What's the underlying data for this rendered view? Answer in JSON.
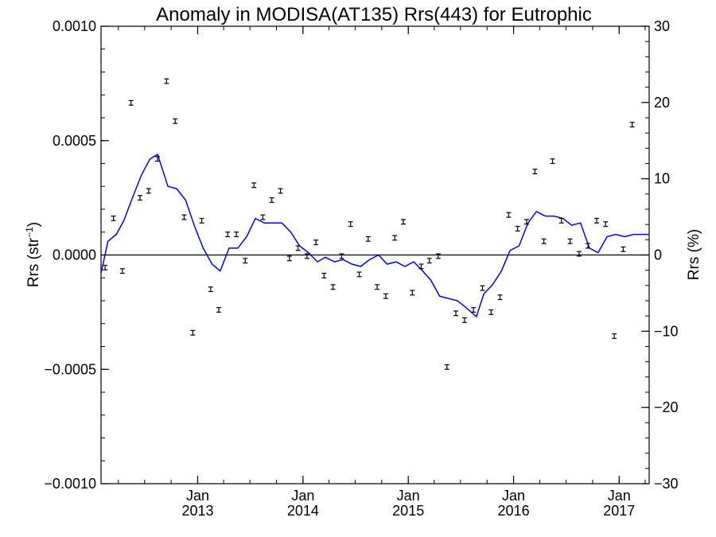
{
  "chart_data": {
    "type": "scatter",
    "title": "Anomaly in MODISA(AT135) Rrs(443) for Eutrophic",
    "ylabel_left": {
      "base": "Rrs (str",
      "sup": "−1",
      "close": ")"
    },
    "ylabel_right": "Rrs (%)",
    "x_range": [
      "2012-02-01",
      "2017-04-15"
    ],
    "ylim_left": [
      -0.001,
      0.001
    ],
    "ylim_right": [
      -30,
      30
    ],
    "y_ticks_left": [
      {
        "value": 0.001,
        "label": "0.0010"
      },
      {
        "value": 0.0005,
        "label": "0.0005"
      },
      {
        "value": 0.0,
        "label": "0.0000"
      },
      {
        "value": -0.0005,
        "label": "−0.0005"
      },
      {
        "value": -0.001,
        "label": "−0.0010"
      }
    ],
    "y_ticks_right": [
      {
        "value": 30,
        "label": "30"
      },
      {
        "value": 20,
        "label": "20"
      },
      {
        "value": 10,
        "label": "10"
      },
      {
        "value": 0,
        "label": "0"
      },
      {
        "value": -10,
        "label": "−10"
      },
      {
        "value": -20,
        "label": "−20"
      },
      {
        "value": -30,
        "label": "−30"
      }
    ],
    "x_ticks": [
      {
        "date": "2013-01-01",
        "month": "Jan",
        "year": "2013"
      },
      {
        "date": "2014-01-01",
        "month": "Jan",
        "year": "2014"
      },
      {
        "date": "2015-01-01",
        "month": "Jan",
        "year": "2015"
      },
      {
        "date": "2016-01-01",
        "month": "Jan",
        "year": "2016"
      },
      {
        "date": "2017-01-01",
        "month": "Jan",
        "year": "2017"
      }
    ],
    "zero_line": 0,
    "series": [
      {
        "kind": "points_with_errorbars",
        "color": "#000000",
        "error": 1e-05,
        "points": [
          {
            "x": "2012-02-15",
            "y": -5.5e-05
          },
          {
            "x": "2012-03-15",
            "y": 0.00016
          },
          {
            "x": "2012-04-15",
            "y": -7e-05
          },
          {
            "x": "2012-05-15",
            "y": 0.000665
          },
          {
            "x": "2012-06-15",
            "y": 0.00025
          },
          {
            "x": "2012-07-15",
            "y": 0.00028
          },
          {
            "x": "2012-08-15",
            "y": 0.00042
          },
          {
            "x": "2012-09-15",
            "y": 0.00076
          },
          {
            "x": "2012-10-15",
            "y": 0.000585
          },
          {
            "x": "2012-11-15",
            "y": 0.000165
          },
          {
            "x": "2012-12-15",
            "y": -0.00034
          },
          {
            "x": "2013-01-15",
            "y": 0.00015
          },
          {
            "x": "2013-02-15",
            "y": -0.00015
          },
          {
            "x": "2013-03-15",
            "y": -0.00024
          },
          {
            "x": "2013-04-15",
            "y": 9e-05
          },
          {
            "x": "2013-05-15",
            "y": 9e-05
          },
          {
            "x": "2013-06-15",
            "y": -2.5e-05
          },
          {
            "x": "2013-07-15",
            "y": 0.000305
          },
          {
            "x": "2013-08-15",
            "y": 0.000165
          },
          {
            "x": "2013-09-15",
            "y": 0.00024
          },
          {
            "x": "2013-10-15",
            "y": 0.00028
          },
          {
            "x": "2013-11-15",
            "y": -1.5e-05
          },
          {
            "x": "2013-12-15",
            "y": 3e-05
          },
          {
            "x": "2014-01-15",
            "y": -5e-06
          },
          {
            "x": "2014-02-15",
            "y": 5.5e-05
          },
          {
            "x": "2014-03-15",
            "y": -9e-05
          },
          {
            "x": "2014-04-15",
            "y": -0.00014
          },
          {
            "x": "2014-05-15",
            "y": -5e-06
          },
          {
            "x": "2014-06-15",
            "y": 0.000135
          },
          {
            "x": "2014-07-15",
            "y": -8.5e-05
          },
          {
            "x": "2014-08-15",
            "y": 7e-05
          },
          {
            "x": "2014-09-15",
            "y": -0.00014
          },
          {
            "x": "2014-10-15",
            "y": -0.00018
          },
          {
            "x": "2014-11-15",
            "y": 7.5e-05
          },
          {
            "x": "2014-12-15",
            "y": 0.000145
          },
          {
            "x": "2015-01-15",
            "y": -0.000165
          },
          {
            "x": "2015-02-15",
            "y": -5e-05
          },
          {
            "x": "2015-03-15",
            "y": -2.5e-05
          },
          {
            "x": "2015-04-15",
            "y": -5e-06
          },
          {
            "x": "2015-05-15",
            "y": -0.00049
          },
          {
            "x": "2015-06-15",
            "y": -0.000255
          },
          {
            "x": "2015-07-15",
            "y": -0.000285
          },
          {
            "x": "2015-08-15",
            "y": -0.00024
          },
          {
            "x": "2015-09-15",
            "y": -0.000145
          },
          {
            "x": "2015-10-15",
            "y": -0.00025
          },
          {
            "x": "2015-11-15",
            "y": -0.000185
          },
          {
            "x": "2015-12-15",
            "y": 0.000175
          },
          {
            "x": "2016-01-15",
            "y": 0.000115
          },
          {
            "x": "2016-02-15",
            "y": 0.000145
          },
          {
            "x": "2016-03-15",
            "y": 0.000365
          },
          {
            "x": "2016-04-15",
            "y": 6e-05
          },
          {
            "x": "2016-05-15",
            "y": 0.00041
          },
          {
            "x": "2016-06-15",
            "y": 0.00015
          },
          {
            "x": "2016-07-15",
            "y": 6e-05
          },
          {
            "x": "2016-08-15",
            "y": 5e-06
          },
          {
            "x": "2016-09-15",
            "y": 4e-05
          },
          {
            "x": "2016-10-15",
            "y": 0.00015
          },
          {
            "x": "2016-11-15",
            "y": 0.000135
          },
          {
            "x": "2016-12-15",
            "y": -0.000355
          },
          {
            "x": "2017-01-15",
            "y": 2.5e-05
          },
          {
            "x": "2017-02-15",
            "y": 0.00057
          }
        ]
      },
      {
        "kind": "line",
        "color": "#0000ff",
        "points": [
          {
            "x": "2012-02-01",
            "y": -8e-05
          },
          {
            "x": "2012-02-25",
            "y": 6e-05
          },
          {
            "x": "2012-03-25",
            "y": 9e-05
          },
          {
            "x": "2012-04-20",
            "y": 0.00015
          },
          {
            "x": "2012-05-20",
            "y": 0.00025
          },
          {
            "x": "2012-06-20",
            "y": 0.00035
          },
          {
            "x": "2012-07-20",
            "y": 0.00042
          },
          {
            "x": "2012-08-15",
            "y": 0.00044
          },
          {
            "x": "2012-09-20",
            "y": 0.0003
          },
          {
            "x": "2012-10-20",
            "y": 0.00029
          },
          {
            "x": "2012-11-20",
            "y": 0.00024
          },
          {
            "x": "2012-12-20",
            "y": 0.00013
          },
          {
            "x": "2013-01-20",
            "y": 3e-05
          },
          {
            "x": "2013-02-20",
            "y": -4e-05
          },
          {
            "x": "2013-03-20",
            "y": -7e-05
          },
          {
            "x": "2013-04-20",
            "y": 3e-05
          },
          {
            "x": "2013-05-20",
            "y": 3e-05
          },
          {
            "x": "2013-06-20",
            "y": 8e-05
          },
          {
            "x": "2013-07-20",
            "y": 0.00016
          },
          {
            "x": "2013-08-20",
            "y": 0.00014
          },
          {
            "x": "2013-09-20",
            "y": 0.00014
          },
          {
            "x": "2013-10-20",
            "y": 0.00014
          },
          {
            "x": "2013-11-20",
            "y": 0.0001
          },
          {
            "x": "2013-12-20",
            "y": 4e-05
          },
          {
            "x": "2014-01-20",
            "y": 1e-05
          },
          {
            "x": "2014-02-20",
            "y": -3e-05
          },
          {
            "x": "2014-03-20",
            "y": -1e-05
          },
          {
            "x": "2014-04-20",
            "y": -3e-05
          },
          {
            "x": "2014-05-20",
            "y": -2e-05
          },
          {
            "x": "2014-06-20",
            "y": -4e-05
          },
          {
            "x": "2014-07-20",
            "y": -5e-05
          },
          {
            "x": "2014-08-20",
            "y": -2e-05
          },
          {
            "x": "2014-09-20",
            "y": 0.0
          },
          {
            "x": "2014-10-20",
            "y": -4e-05
          },
          {
            "x": "2014-11-20",
            "y": -3e-05
          },
          {
            "x": "2014-12-20",
            "y": -5e-05
          },
          {
            "x": "2015-01-20",
            "y": -3e-05
          },
          {
            "x": "2015-02-20",
            "y": -7e-05
          },
          {
            "x": "2015-03-20",
            "y": -0.00011
          },
          {
            "x": "2015-04-20",
            "y": -0.00018
          },
          {
            "x": "2015-05-20",
            "y": -0.00019
          },
          {
            "x": "2015-06-20",
            "y": -0.0002
          },
          {
            "x": "2015-07-20",
            "y": -0.00023
          },
          {
            "x": "2015-08-25",
            "y": -0.00027
          },
          {
            "x": "2015-09-20",
            "y": -0.00017
          },
          {
            "x": "2015-10-20",
            "y": -0.00013
          },
          {
            "x": "2015-11-20",
            "y": -7e-05
          },
          {
            "x": "2015-12-20",
            "y": 2e-05
          },
          {
            "x": "2016-01-20",
            "y": 4e-05
          },
          {
            "x": "2016-02-20",
            "y": 0.00014
          },
          {
            "x": "2016-03-20",
            "y": 0.00019
          },
          {
            "x": "2016-04-20",
            "y": 0.00017
          },
          {
            "x": "2016-05-20",
            "y": 0.00017
          },
          {
            "x": "2016-06-20",
            "y": 0.00016
          },
          {
            "x": "2016-07-20",
            "y": 0.00013
          },
          {
            "x": "2016-08-20",
            "y": 0.00014
          },
          {
            "x": "2016-09-20",
            "y": 3e-05
          },
          {
            "x": "2016-10-20",
            "y": 1e-05
          },
          {
            "x": "2016-11-20",
            "y": 8e-05
          },
          {
            "x": "2016-12-20",
            "y": 9e-05
          },
          {
            "x": "2017-01-20",
            "y": 8e-05
          },
          {
            "x": "2017-02-20",
            "y": 9e-05
          },
          {
            "x": "2017-04-15",
            "y": 9e-05
          }
        ]
      }
    ]
  }
}
